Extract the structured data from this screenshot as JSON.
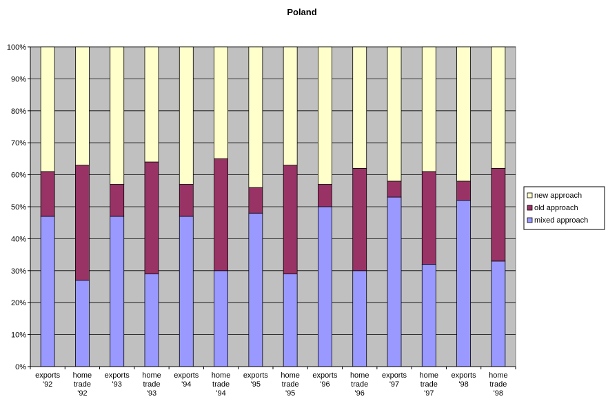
{
  "chart_data": {
    "type": "bar",
    "stacked": true,
    "title": "Poland",
    "categories": [
      [
        "exports",
        "'92"
      ],
      [
        "home",
        "trade",
        "'92"
      ],
      [
        "exports",
        "'93"
      ],
      [
        "home",
        "trade",
        "'93"
      ],
      [
        "exports",
        "'94"
      ],
      [
        "home",
        "trade",
        "'94"
      ],
      [
        "exports",
        "'95"
      ],
      [
        "home",
        "trade",
        "'95"
      ],
      [
        "exports",
        "'96"
      ],
      [
        "home",
        "trade",
        "'96"
      ],
      [
        "exports",
        "'97"
      ],
      [
        "home",
        "trade",
        "'97"
      ],
      [
        "exports",
        "'98"
      ],
      [
        "home",
        "trade",
        "'98"
      ]
    ],
    "series": [
      {
        "name": "mixed approach",
        "color": "#9999ff",
        "values": [
          47,
          27,
          47,
          29,
          47,
          30,
          48,
          29,
          50,
          30,
          53,
          32,
          52,
          33
        ]
      },
      {
        "name": "old approach",
        "color": "#993366",
        "values": [
          14,
          36,
          10,
          35,
          10,
          35,
          8,
          34,
          7,
          32,
          5,
          29,
          6,
          29
        ]
      },
      {
        "name": "new approach",
        "color": "#ffffcc",
        "values": [
          39,
          37,
          43,
          36,
          43,
          35,
          44,
          37,
          43,
          38,
          42,
          39,
          42,
          38
        ]
      }
    ],
    "yticks": [
      "0%",
      "10%",
      "20%",
      "30%",
      "40%",
      "50%",
      "60%",
      "70%",
      "80%",
      "90%",
      "100%"
    ],
    "ylim": [
      0,
      100
    ],
    "plot_background": "#c0c0c0",
    "grid": true,
    "legend_position": "right",
    "legend_order": [
      "new approach",
      "old approach",
      "mixed approach"
    ]
  }
}
